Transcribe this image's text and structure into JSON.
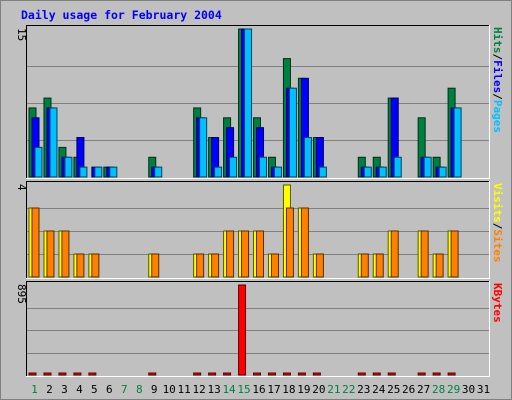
{
  "chart_data": {
    "title": "Daily usage for February 2004",
    "type": "bar",
    "x": [
      "1",
      "2",
      "3",
      "4",
      "5",
      "6",
      "7",
      "8",
      "9",
      "10",
      "11",
      "12",
      "13",
      "14",
      "15",
      "16",
      "17",
      "18",
      "19",
      "20",
      "21",
      "22",
      "23",
      "24",
      "25",
      "26",
      "27",
      "28",
      "29",
      "30",
      "31"
    ],
    "weekend_days": [
      1,
      7,
      8,
      14,
      15,
      21,
      22,
      28,
      29
    ],
    "panels": [
      {
        "id": "hits",
        "ymax": 15,
        "ymax_label": "15",
        "series": [
          {
            "name": "Hits",
            "color": "#008040",
            "values": [
              7,
              8,
              3,
              2,
              0,
              1,
              0,
              0,
              2,
              0,
              0,
              7,
              4,
              6,
              15,
              6,
              2,
              12,
              10,
              4,
              0,
              0,
              2,
              2,
              8,
              0,
              6,
              2,
              9,
              0,
              0
            ]
          },
          {
            "name": "Files",
            "color": "#0000ff",
            "values": [
              6,
              7,
              2,
              4,
              1,
              1,
              0,
              0,
              1,
              0,
              0,
              6,
              4,
              5,
              15,
              5,
              1,
              9,
              10,
              4,
              0,
              0,
              1,
              1,
              8,
              0,
              2,
              1,
              7,
              0,
              0
            ]
          },
          {
            "name": "Pages",
            "color": "#00c0ff",
            "values": [
              3,
              7,
              2,
              1,
              1,
              1,
              0,
              0,
              1,
              0,
              0,
              6,
              1,
              2,
              15,
              2,
              1,
              9,
              4,
              1,
              0,
              0,
              1,
              1,
              2,
              0,
              2,
              1,
              7,
              0,
              0
            ]
          }
        ],
        "legend": [
          "Pages",
          "/",
          "Files",
          "/",
          "Hits"
        ]
      },
      {
        "id": "visits",
        "ymax": 4,
        "ymax_label": "4",
        "series": [
          {
            "name": "Visits",
            "color": "#ffff00",
            "values": [
              3,
              2,
              2,
              1,
              1,
              0,
              0,
              0,
              1,
              0,
              0,
              1,
              1,
              2,
              2,
              2,
              1,
              4,
              3,
              1,
              0,
              0,
              1,
              1,
              2,
              0,
              2,
              1,
              2,
              0,
              0
            ]
          },
          {
            "name": "Sites",
            "color": "#ff8000",
            "values": [
              3,
              2,
              2,
              1,
              1,
              0,
              0,
              0,
              1,
              0,
              0,
              1,
              1,
              2,
              2,
              2,
              1,
              3,
              3,
              1,
              0,
              0,
              1,
              1,
              2,
              0,
              2,
              1,
              2,
              0,
              0
            ]
          }
        ],
        "legend": [
          "Sites",
          "/",
          "Visits"
        ]
      },
      {
        "id": "kbytes",
        "ymax": 895,
        "ymax_label": "895",
        "series": [
          {
            "name": "KBytes",
            "color": "#ff0000",
            "values": [
              3,
              12,
              12,
              4,
              4,
              0,
              0,
              0,
              4,
              0,
              0,
              12,
              4,
              4,
              895,
              4,
              4,
              12,
              4,
              4,
              0,
              0,
              4,
              4,
              4,
              0,
              4,
              4,
              12,
              0,
              0
            ]
          }
        ],
        "legend": [
          "KBytes"
        ]
      }
    ],
    "colors": {
      "background": "#c0c0c0",
      "plot_area": "#c0c0c0",
      "title": "#0000ff",
      "weekday_label": "#000000",
      "weekend_label": "#008040",
      "slash": "#000000"
    }
  }
}
